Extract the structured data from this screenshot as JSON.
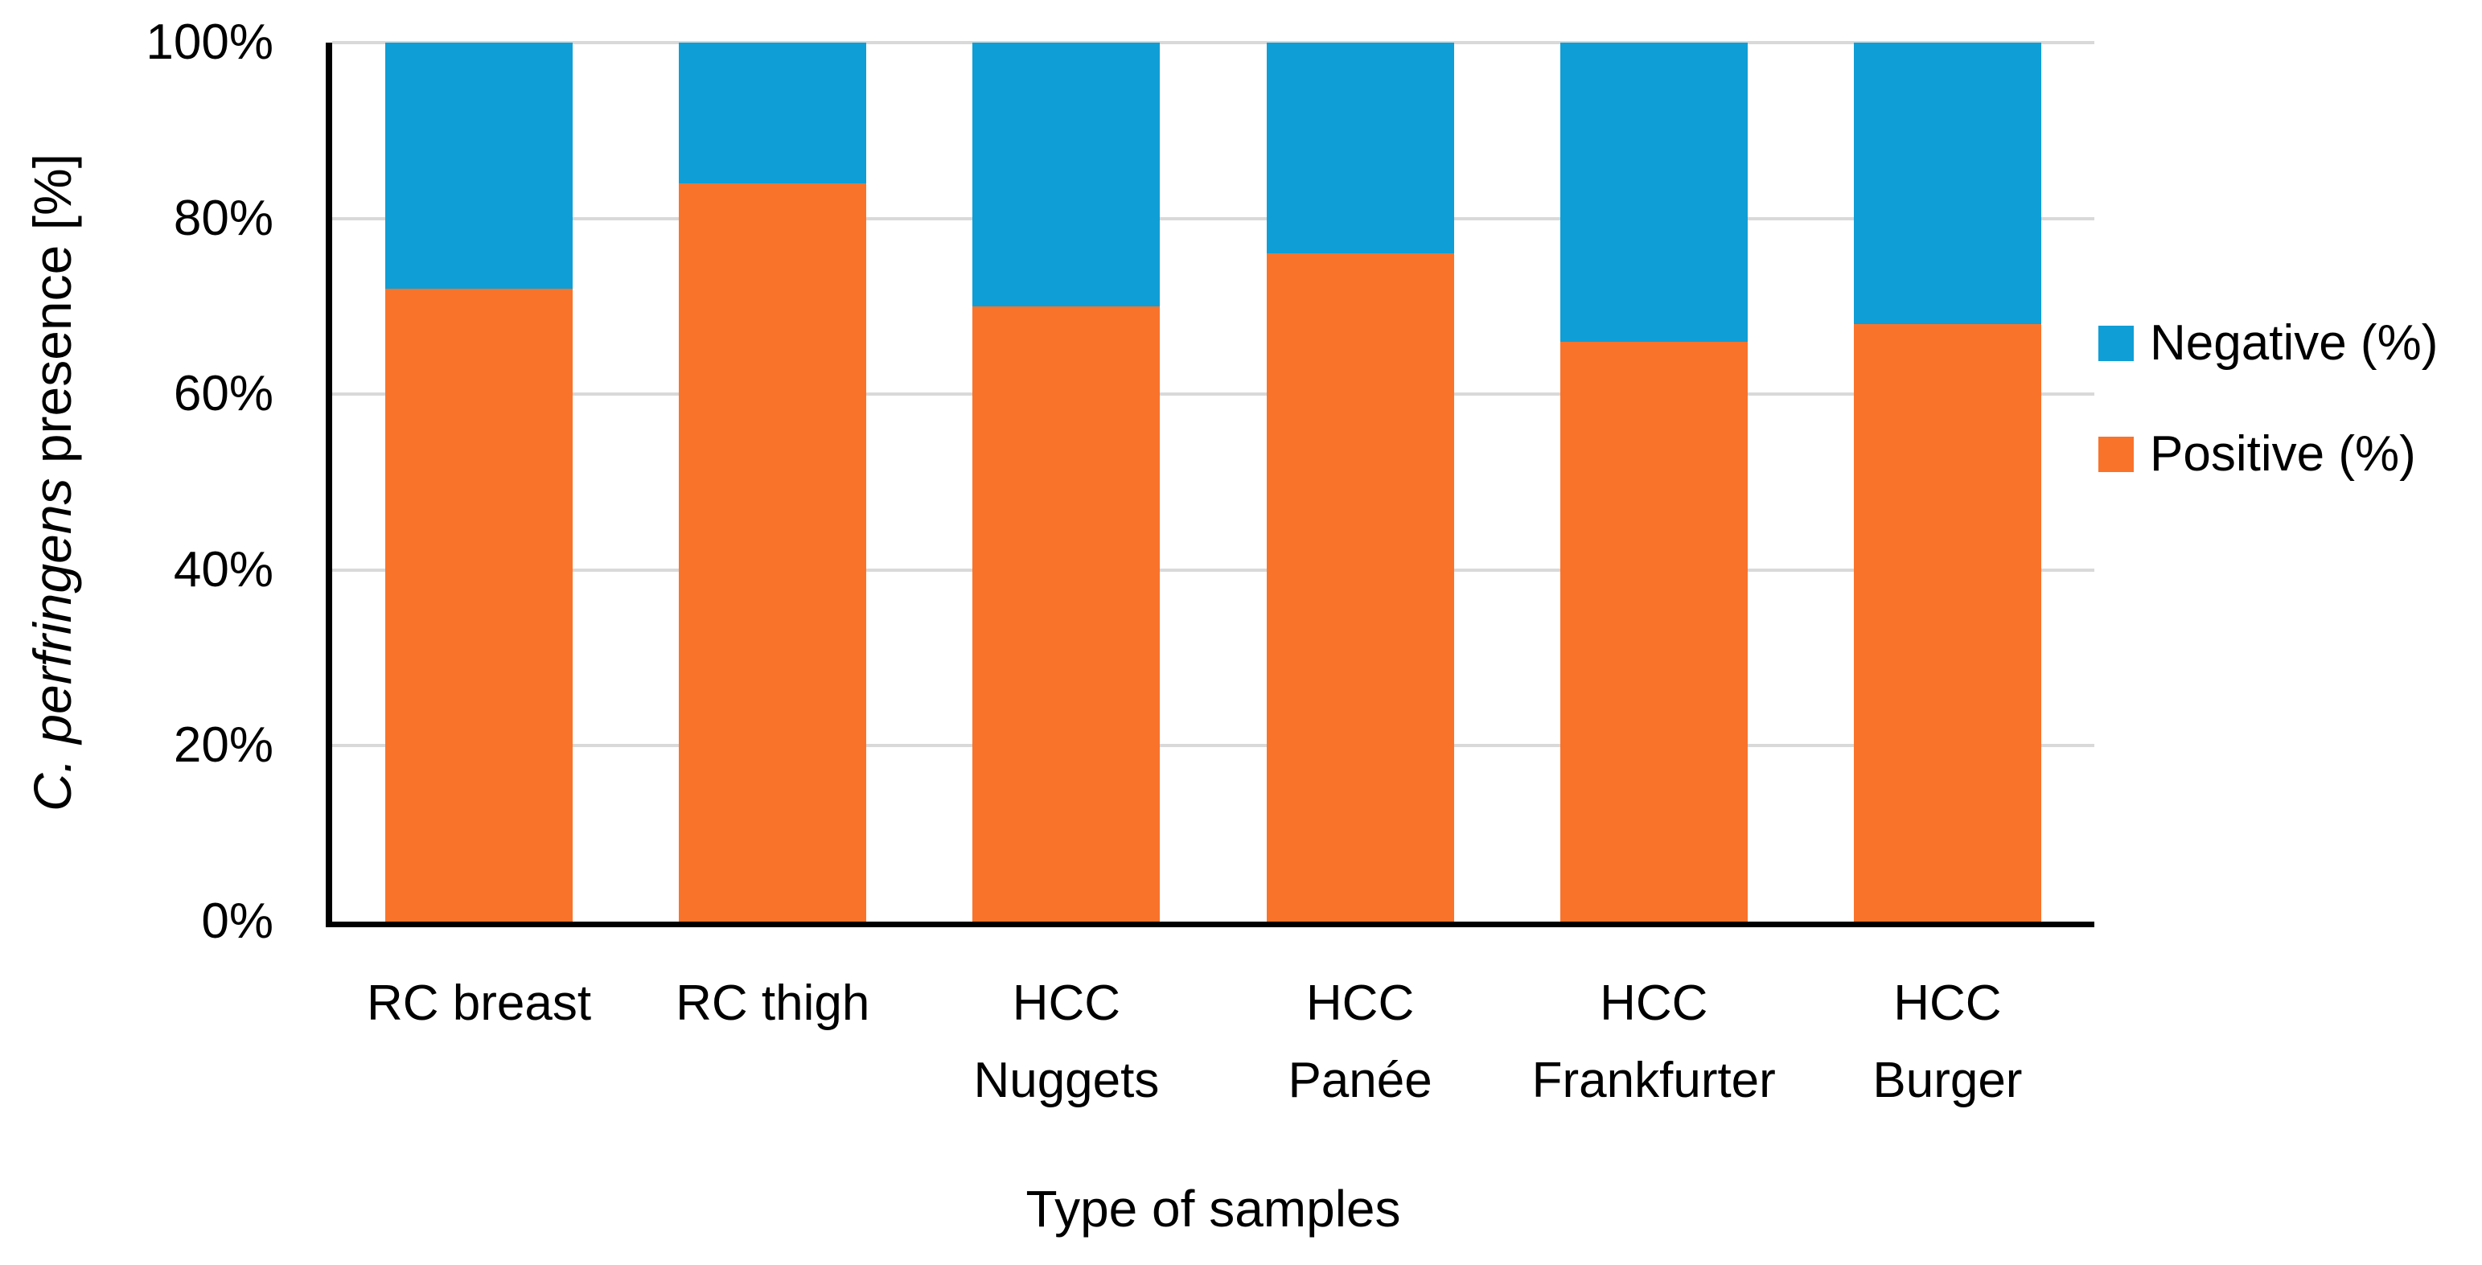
{
  "chart_data": {
    "type": "bar",
    "stacked": true,
    "title": "",
    "xlabel": "Type of samples",
    "ylabel": "C. perfringens presence [%]",
    "ylabel_italic_part": "C. perfringens",
    "ylabel_regular_part": " presence [%]",
    "categories": [
      "RC breast",
      "RC thigh",
      "HCC Nuggets",
      "HCC Panée",
      "HCC Frankfurter",
      "HCC Burger"
    ],
    "category_label_lines": [
      [
        "RC breast"
      ],
      [
        "RC thigh"
      ],
      [
        "HCC",
        "Nuggets"
      ],
      [
        "HCC",
        "Panée"
      ],
      [
        "HCC",
        "Frankfurter"
      ],
      [
        "HCC",
        "Burger"
      ]
    ],
    "series": [
      {
        "name": "Positive (%)",
        "color": "#f9732b",
        "values": [
          72,
          84,
          70,
          76,
          66,
          68
        ]
      },
      {
        "name": "Negative (%)",
        "color": "#0f9ed5",
        "values": [
          28,
          16,
          30,
          24,
          34,
          32
        ]
      }
    ],
    "ylim": [
      0,
      100
    ],
    "yticks": [
      0,
      20,
      40,
      60,
      80,
      100
    ],
    "ytick_suffix": "%",
    "grid": true,
    "gridline_color": "#d9d9d9",
    "axis_color": "#000000",
    "legend_position": "right",
    "legend_order": [
      "Negative (%)",
      "Positive (%)"
    ]
  }
}
